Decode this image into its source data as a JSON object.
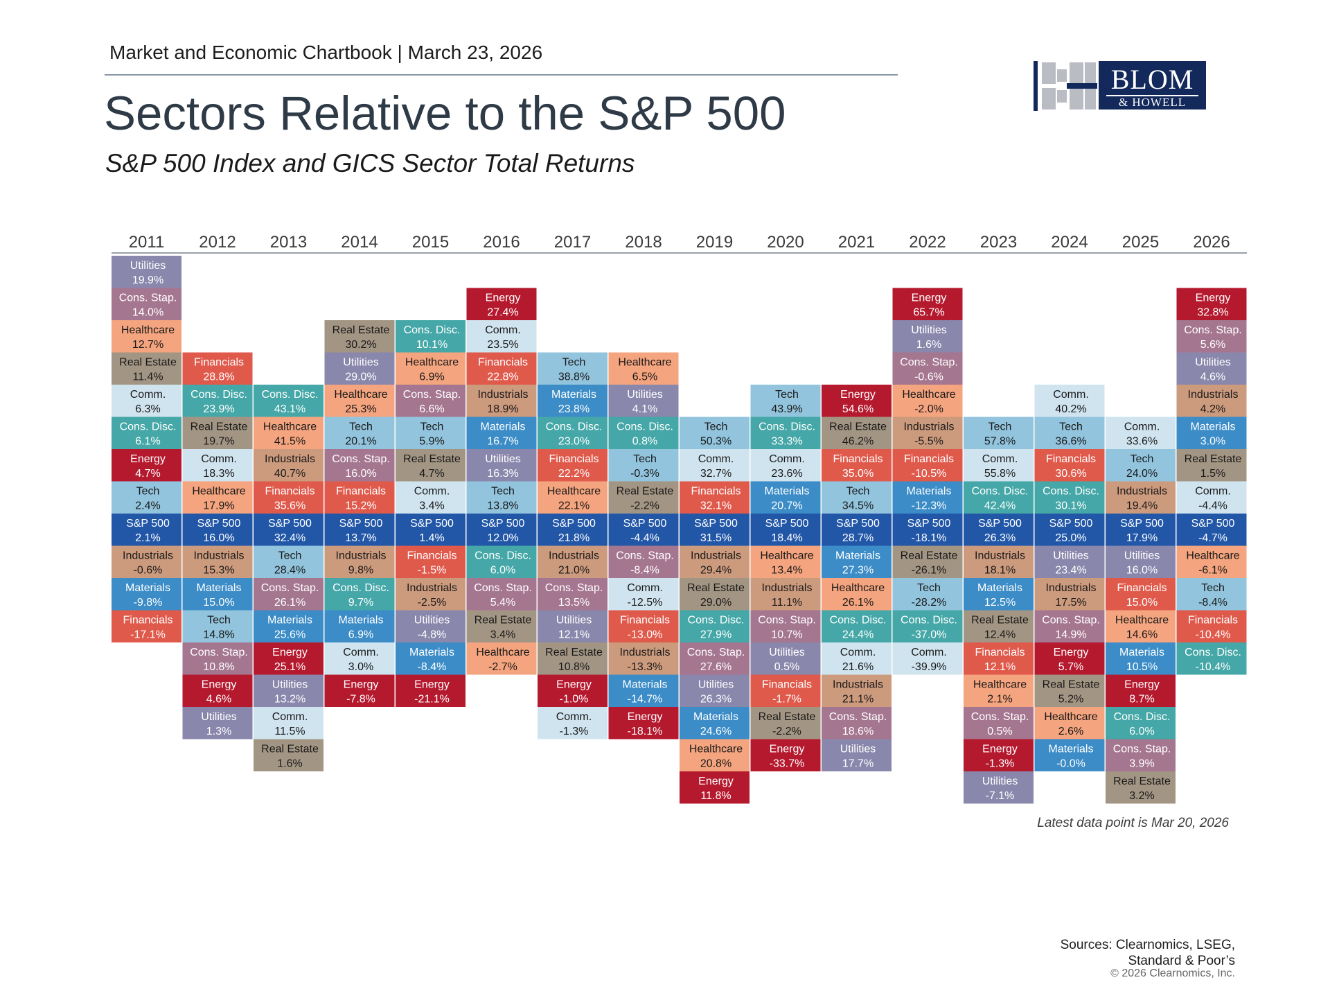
{
  "header": {
    "chartbook": "Market and Economic Chartbook | March 23, 2026",
    "title": "Sectors Relative to the S&P 500",
    "subtitle": "S&P 500 Index and GICS Sector Total Returns"
  },
  "logo": {
    "line1": "BLOM",
    "line2": "& HOWELL"
  },
  "footnote": "Latest data point is Mar 20, 2026",
  "sources": {
    "line1": "Sources: Clearnomics, LSEG,",
    "line2": "Standard & Poor’s"
  },
  "copyright": "© 2026 Clearnomics, Inc.",
  "colors": {
    "S&P 500": "#2257a8",
    "Utilities": "#8a87ac",
    "Cons. Stap.": "#a57690",
    "Healthcare": "#f4a47e",
    "Real Estate": "#a39583",
    "Comm.": "#d0e4ef",
    "Cons. Disc.": "#45a7a7",
    "Energy": "#b5192e",
    "Tech": "#92c4dd",
    "Industrials": "#cc9a7d",
    "Materials": "#3b8cc7",
    "Financials": "#e05a4c",
    "text_light": "#ffffff",
    "text_dark": "#1a1a1a"
  },
  "chart_data": {
    "type": "table",
    "years": [
      "2011",
      "2012",
      "2013",
      "2014",
      "2015",
      "2016",
      "2017",
      "2018",
      "2019",
      "2020",
      "2021",
      "2022",
      "2023",
      "2024",
      "2025",
      "2026"
    ],
    "benchmark": "S&P 500",
    "columns": [
      {
        "year": "2011",
        "above": [
          [
            "Utilities",
            "19.9%"
          ],
          [
            "Cons. Stap.",
            "14.0%"
          ],
          [
            "Healthcare",
            "12.7%"
          ],
          [
            "Real Estate",
            "11.4%"
          ],
          [
            "Comm.",
            "6.3%"
          ],
          [
            "Cons. Disc.",
            "6.1%"
          ],
          [
            "Energy",
            "4.7%"
          ],
          [
            "Tech",
            "2.4%"
          ]
        ],
        "sp500": "2.1%",
        "below": [
          [
            "Industrials",
            "-0.6%"
          ],
          [
            "Materials",
            "-9.8%"
          ],
          [
            "Financials",
            "-17.1%"
          ]
        ]
      },
      {
        "year": "2012",
        "above": [
          [
            "Financials",
            "28.8%"
          ],
          [
            "Cons. Disc.",
            "23.9%"
          ],
          [
            "Real Estate",
            "19.7%"
          ],
          [
            "Comm.",
            "18.3%"
          ],
          [
            "Healthcare",
            "17.9%"
          ]
        ],
        "sp500": "16.0%",
        "below": [
          [
            "Industrials",
            "15.3%"
          ],
          [
            "Materials",
            "15.0%"
          ],
          [
            "Tech",
            "14.8%"
          ],
          [
            "Cons. Stap.",
            "10.8%"
          ],
          [
            "Energy",
            "4.6%"
          ],
          [
            "Utilities",
            "1.3%"
          ]
        ]
      },
      {
        "year": "2013",
        "above": [
          [
            "Cons. Disc.",
            "43.1%"
          ],
          [
            "Healthcare",
            "41.5%"
          ],
          [
            "Industrials",
            "40.7%"
          ],
          [
            "Financials",
            "35.6%"
          ]
        ],
        "sp500": "32.4%",
        "below": [
          [
            "Tech",
            "28.4%"
          ],
          [
            "Cons. Stap.",
            "26.1%"
          ],
          [
            "Materials",
            "25.6%"
          ],
          [
            "Energy",
            "25.1%"
          ],
          [
            "Utilities",
            "13.2%"
          ],
          [
            "Comm.",
            "11.5%"
          ],
          [
            "Real Estate",
            "1.6%"
          ]
        ]
      },
      {
        "year": "2014",
        "above": [
          [
            "Real Estate",
            "30.2%"
          ],
          [
            "Utilities",
            "29.0%"
          ],
          [
            "Healthcare",
            "25.3%"
          ],
          [
            "Tech",
            "20.1%"
          ],
          [
            "Cons. Stap.",
            "16.0%"
          ],
          [
            "Financials",
            "15.2%"
          ]
        ],
        "sp500": "13.7%",
        "below": [
          [
            "Industrials",
            "9.8%"
          ],
          [
            "Cons. Disc.",
            "9.7%"
          ],
          [
            "Materials",
            "6.9%"
          ],
          [
            "Comm.",
            "3.0%"
          ],
          [
            "Energy",
            "-7.8%"
          ]
        ]
      },
      {
        "year": "2015",
        "above": [
          [
            "Cons. Disc.",
            "10.1%"
          ],
          [
            "Healthcare",
            "6.9%"
          ],
          [
            "Cons. Stap.",
            "6.6%"
          ],
          [
            "Tech",
            "5.9%"
          ],
          [
            "Real Estate",
            "4.7%"
          ],
          [
            "Comm.",
            "3.4%"
          ]
        ],
        "sp500": "1.4%",
        "below": [
          [
            "Financials",
            "-1.5%"
          ],
          [
            "Industrials",
            "-2.5%"
          ],
          [
            "Utilities",
            "-4.8%"
          ],
          [
            "Materials",
            "-8.4%"
          ],
          [
            "Energy",
            "-21.1%"
          ]
        ]
      },
      {
        "year": "2016",
        "above": [
          [
            "Energy",
            "27.4%"
          ],
          [
            "Comm.",
            "23.5%"
          ],
          [
            "Financials",
            "22.8%"
          ],
          [
            "Industrials",
            "18.9%"
          ],
          [
            "Materials",
            "16.7%"
          ],
          [
            "Utilities",
            "16.3%"
          ],
          [
            "Tech",
            "13.8%"
          ]
        ],
        "sp500": "12.0%",
        "below": [
          [
            "Cons. Disc.",
            "6.0%"
          ],
          [
            "Cons. Stap.",
            "5.4%"
          ],
          [
            "Real Estate",
            "3.4%"
          ],
          [
            "Healthcare",
            "-2.7%"
          ]
        ]
      },
      {
        "year": "2017",
        "above": [
          [
            "Tech",
            "38.8%"
          ],
          [
            "Materials",
            "23.8%"
          ],
          [
            "Cons. Disc.",
            "23.0%"
          ],
          [
            "Financials",
            "22.2%"
          ],
          [
            "Healthcare",
            "22.1%"
          ]
        ],
        "sp500": "21.8%",
        "below": [
          [
            "Industrials",
            "21.0%"
          ],
          [
            "Cons. Stap.",
            "13.5%"
          ],
          [
            "Utilities",
            "12.1%"
          ],
          [
            "Real Estate",
            "10.8%"
          ],
          [
            "Energy",
            "-1.0%"
          ],
          [
            "Comm.",
            "-1.3%"
          ]
        ]
      },
      {
        "year": "2018",
        "above": [
          [
            "Healthcare",
            "6.5%"
          ],
          [
            "Utilities",
            "4.1%"
          ],
          [
            "Cons. Disc.",
            "0.8%"
          ],
          [
            "Tech",
            "-0.3%"
          ],
          [
            "Real Estate",
            "-2.2%"
          ]
        ],
        "sp500": "-4.4%",
        "below": [
          [
            "Cons. Stap.",
            "-8.4%"
          ],
          [
            "Comm.",
            "-12.5%"
          ],
          [
            "Financials",
            "-13.0%"
          ],
          [
            "Industrials",
            "-13.3%"
          ],
          [
            "Materials",
            "-14.7%"
          ],
          [
            "Energy",
            "-18.1%"
          ]
        ]
      },
      {
        "year": "2019",
        "above": [
          [
            "Tech",
            "50.3%"
          ],
          [
            "Comm.",
            "32.7%"
          ],
          [
            "Financials",
            "32.1%"
          ]
        ],
        "sp500": "31.5%",
        "below": [
          [
            "Industrials",
            "29.4%"
          ],
          [
            "Real Estate",
            "29.0%"
          ],
          [
            "Cons. Disc.",
            "27.9%"
          ],
          [
            "Cons. Stap.",
            "27.6%"
          ],
          [
            "Utilities",
            "26.3%"
          ],
          [
            "Materials",
            "24.6%"
          ],
          [
            "Healthcare",
            "20.8%"
          ],
          [
            "Energy",
            "11.8%"
          ]
        ]
      },
      {
        "year": "2020",
        "above": [
          [
            "Tech",
            "43.9%"
          ],
          [
            "Cons. Disc.",
            "33.3%"
          ],
          [
            "Comm.",
            "23.6%"
          ],
          [
            "Materials",
            "20.7%"
          ]
        ],
        "sp500": "18.4%",
        "below": [
          [
            "Healthcare",
            "13.4%"
          ],
          [
            "Industrials",
            "11.1%"
          ],
          [
            "Cons. Stap.",
            "10.7%"
          ],
          [
            "Utilities",
            "0.5%"
          ],
          [
            "Financials",
            "-1.7%"
          ],
          [
            "Real Estate",
            "-2.2%"
          ],
          [
            "Energy",
            "-33.7%"
          ]
        ]
      },
      {
        "year": "2021",
        "above": [
          [
            "Energy",
            "54.6%"
          ],
          [
            "Real Estate",
            "46.2%"
          ],
          [
            "Financials",
            "35.0%"
          ],
          [
            "Tech",
            "34.5%"
          ]
        ],
        "sp500": "28.7%",
        "below": [
          [
            "Materials",
            "27.3%"
          ],
          [
            "Healthcare",
            "26.1%"
          ],
          [
            "Cons. Disc.",
            "24.4%"
          ],
          [
            "Comm.",
            "21.6%"
          ],
          [
            "Industrials",
            "21.1%"
          ],
          [
            "Cons. Stap.",
            "18.6%"
          ],
          [
            "Utilities",
            "17.7%"
          ]
        ]
      },
      {
        "year": "2022",
        "above": [
          [
            "Energy",
            "65.7%"
          ],
          [
            "Utilities",
            "1.6%"
          ],
          [
            "Cons. Stap.",
            "-0.6%"
          ],
          [
            "Healthcare",
            "-2.0%"
          ],
          [
            "Industrials",
            "-5.5%"
          ],
          [
            "Financials",
            "-10.5%"
          ],
          [
            "Materials",
            "-12.3%"
          ]
        ],
        "sp500": "-18.1%",
        "below": [
          [
            "Real Estate",
            "-26.1%"
          ],
          [
            "Tech",
            "-28.2%"
          ],
          [
            "Cons. Disc.",
            "-37.0%"
          ],
          [
            "Comm.",
            "-39.9%"
          ]
        ]
      },
      {
        "year": "2023",
        "above": [
          [
            "Tech",
            "57.8%"
          ],
          [
            "Comm.",
            "55.8%"
          ],
          [
            "Cons. Disc.",
            "42.4%"
          ]
        ],
        "sp500": "26.3%",
        "below": [
          [
            "Industrials",
            "18.1%"
          ],
          [
            "Materials",
            "12.5%"
          ],
          [
            "Real Estate",
            "12.4%"
          ],
          [
            "Financials",
            "12.1%"
          ],
          [
            "Healthcare",
            "2.1%"
          ],
          [
            "Cons. Stap.",
            "0.5%"
          ],
          [
            "Energy",
            "-1.3%"
          ],
          [
            "Utilities",
            "-7.1%"
          ]
        ]
      },
      {
        "year": "2024",
        "above": [
          [
            "Comm.",
            "40.2%"
          ],
          [
            "Tech",
            "36.6%"
          ],
          [
            "Financials",
            "30.6%"
          ],
          [
            "Cons. Disc.",
            "30.1%"
          ]
        ],
        "sp500": "25.0%",
        "below": [
          [
            "Utilities",
            "23.4%"
          ],
          [
            "Industrials",
            "17.5%"
          ],
          [
            "Cons. Stap.",
            "14.9%"
          ],
          [
            "Energy",
            "5.7%"
          ],
          [
            "Real Estate",
            "5.2%"
          ],
          [
            "Healthcare",
            "2.6%"
          ],
          [
            "Materials",
            "-0.0%"
          ]
        ]
      },
      {
        "year": "2025",
        "above": [
          [
            "Comm.",
            "33.6%"
          ],
          [
            "Tech",
            "24.0%"
          ],
          [
            "Industrials",
            "19.4%"
          ]
        ],
        "sp500": "17.9%",
        "below": [
          [
            "Utilities",
            "16.0%"
          ],
          [
            "Financials",
            "15.0%"
          ],
          [
            "Healthcare",
            "14.6%"
          ],
          [
            "Materials",
            "10.5%"
          ],
          [
            "Energy",
            "8.7%"
          ],
          [
            "Cons. Disc.",
            "6.0%"
          ],
          [
            "Cons. Stap.",
            "3.9%"
          ],
          [
            "Real Estate",
            "3.2%"
          ]
        ]
      },
      {
        "year": "2026",
        "above": [
          [
            "Energy",
            "32.8%"
          ],
          [
            "Cons. Stap.",
            "5.6%"
          ],
          [
            "Utilities",
            "4.6%"
          ],
          [
            "Industrials",
            "4.2%"
          ],
          [
            "Materials",
            "3.0%"
          ],
          [
            "Real Estate",
            "1.5%"
          ],
          [
            "Comm.",
            "-4.4%"
          ]
        ],
        "sp500": "-4.7%",
        "below": [
          [
            "Healthcare",
            "-6.1%"
          ],
          [
            "Tech",
            "-8.4%"
          ],
          [
            "Financials",
            "-10.4%"
          ],
          [
            "Cons. Disc.",
            "-10.4%"
          ]
        ]
      }
    ]
  }
}
